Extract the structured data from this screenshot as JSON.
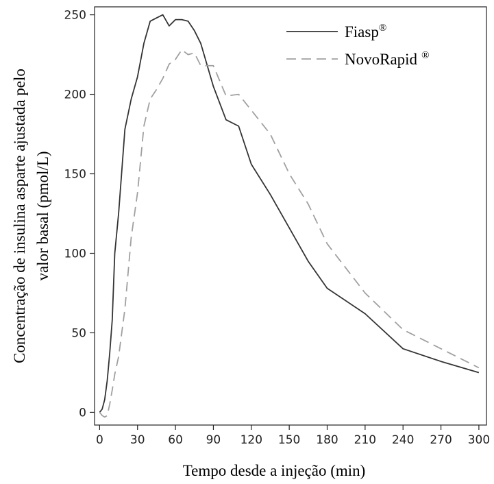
{
  "chart_data": {
    "type": "line",
    "title": "",
    "xlabel": "Tempo desde a injeção (min)",
    "ylabel_line1": "Concentração de insulina asparte ajustada pelo",
    "ylabel_line2": "valor basal (pmol/L)",
    "xlim": [
      -4,
      306
    ],
    "ylim": [
      -8,
      255
    ],
    "xticks": [
      0,
      30,
      60,
      90,
      120,
      150,
      180,
      210,
      240,
      270,
      300
    ],
    "yticks": [
      0,
      50,
      100,
      150,
      200,
      250
    ],
    "grid": false,
    "legend_position": "top-right",
    "series": [
      {
        "name": "Fiasp",
        "name_sup": "®",
        "style": "solid",
        "color": "#333333",
        "x": [
          0,
          2,
          4,
          6,
          8,
          10,
          12,
          15,
          20,
          25,
          30,
          35,
          40,
          45,
          50,
          55,
          60,
          65,
          70,
          75,
          80,
          90,
          100,
          110,
          120,
          135,
          150,
          165,
          180,
          210,
          240,
          270,
          300
        ],
        "y": [
          0,
          2,
          8,
          20,
          37,
          58,
          100,
          125,
          178,
          197,
          211,
          232,
          246,
          248,
          250,
          243,
          247,
          247,
          246,
          240,
          232,
          205,
          184,
          180,
          156,
          137,
          116,
          95,
          78,
          62,
          40,
          32,
          25
        ]
      },
      {
        "name": "NovoRapid",
        "name_sup": "®",
        "style": "dashed",
        "color": "#a0a0a0",
        "x": [
          0,
          2,
          4,
          6,
          8,
          10,
          12,
          15,
          20,
          25,
          30,
          35,
          40,
          45,
          50,
          55,
          60,
          65,
          70,
          75,
          80,
          90,
          100,
          110,
          120,
          135,
          150,
          165,
          180,
          210,
          240,
          270,
          300
        ],
        "y": [
          0,
          -2,
          -3,
          -2,
          5,
          14,
          24,
          35,
          65,
          110,
          138,
          180,
          197,
          203,
          210,
          219,
          222,
          228,
          225,
          226,
          218,
          218,
          199,
          200,
          190,
          175,
          150,
          131,
          106,
          75,
          52,
          40,
          28
        ]
      }
    ]
  }
}
